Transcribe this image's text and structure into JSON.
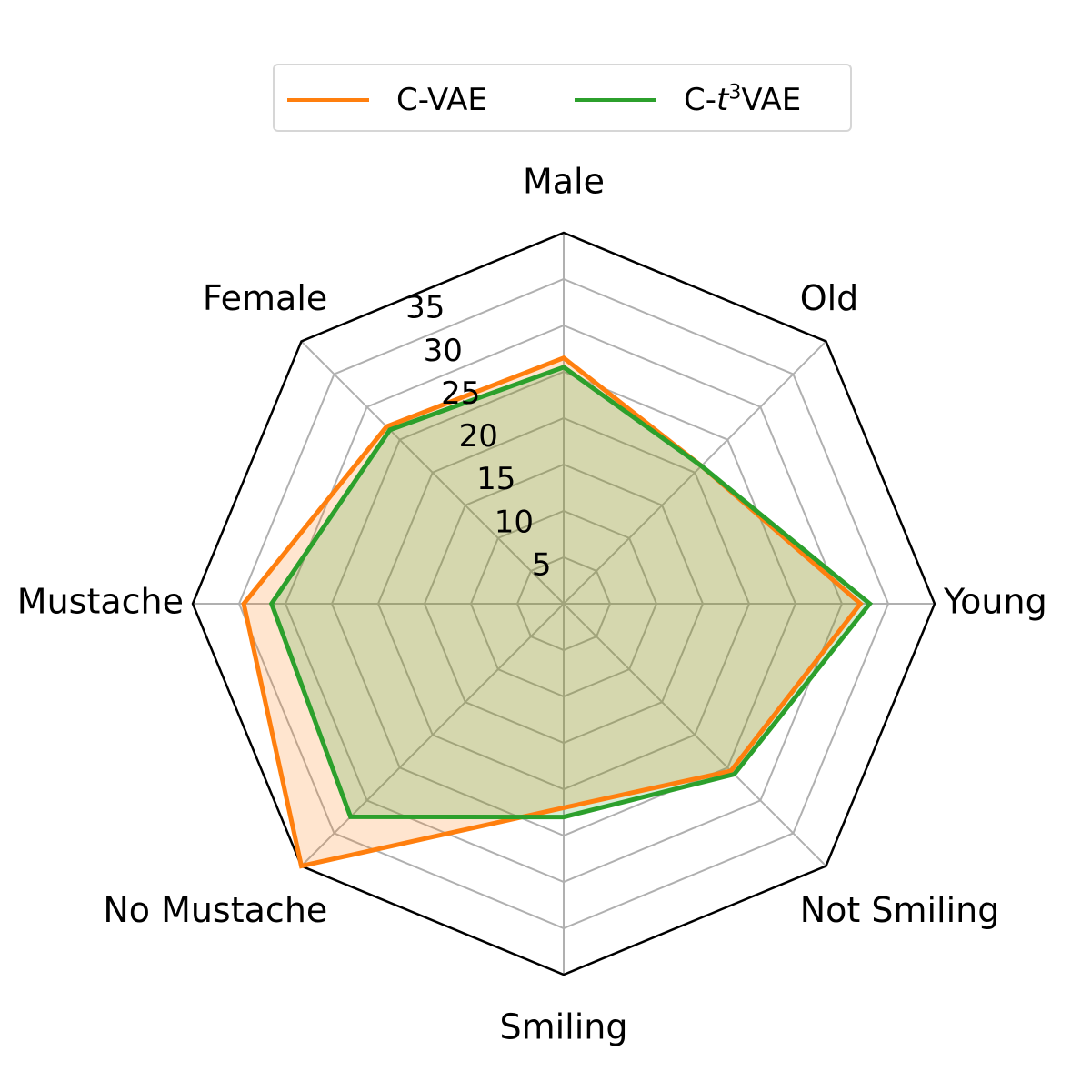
{
  "chart_data": {
    "type": "radar",
    "categories": [
      "Male",
      "Old",
      "Young",
      "Not Smiling",
      "Smiling",
      "No Mustache",
      "Mustache",
      "Female"
    ],
    "radial_ticks": [
      "5",
      "10",
      "15",
      "20",
      "25",
      "30",
      "35"
    ],
    "rlim": [
      0,
      40
    ],
    "grid": true,
    "legend_placement": "top-center",
    "series": [
      {
        "name": "C-VAE",
        "name_prefix": "C-VAE",
        "name_italic": "",
        "name_sup": "",
        "name_suffix": "",
        "color": "#ff7f0e",
        "values": [
          26.5,
          21.0,
          32.0,
          25.5,
          22.0,
          40.0,
          34.5,
          27.0
        ]
      },
      {
        "name": "C-t3VAE",
        "name_prefix": "C-",
        "name_italic": "t",
        "name_sup": "3",
        "name_suffix": "VAE",
        "color": "#2ca02c",
        "values": [
          25.5,
          21.0,
          33.0,
          26.0,
          23.0,
          32.5,
          31.5,
          26.5
        ]
      }
    ]
  }
}
